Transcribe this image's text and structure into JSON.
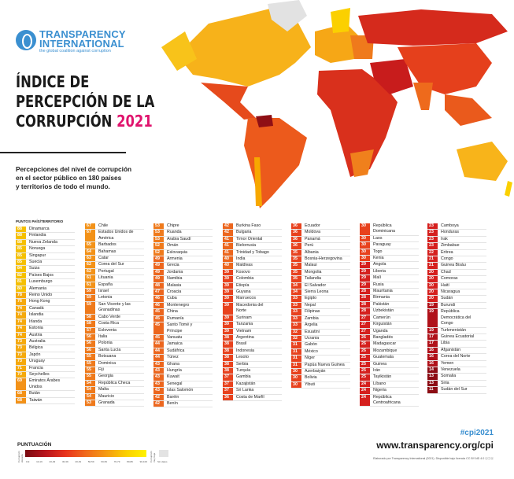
{
  "logo": {
    "line1": "TRANSPARENCY",
    "line2": "INTERNATIONAL",
    "tagline": "the global coalition against corruption"
  },
  "title": {
    "line1": "ÍNDICE DE",
    "line2": "PERCEPCIÓN DE LA",
    "line3": "CORRUPCIÓN",
    "year": "2021"
  },
  "subtitle": {
    "line1": "Percepciones del nivel de corrupción",
    "line2": "en el sector público en 180 países",
    "line3": "y territorios de todo el mundo."
  },
  "table_header": "PUNTOS  PAÍS/TERRITORIO",
  "columns": [
    [
      [
        88,
        "Dinamarca"
      ],
      [
        88,
        "Finlandia"
      ],
      [
        88,
        "Nueva Zelanda"
      ],
      [
        85,
        "Noruega"
      ],
      [
        85,
        "Singapur"
      ],
      [
        85,
        "Suecia"
      ],
      [
        84,
        "Suiza"
      ],
      [
        82,
        "Países Bajos"
      ],
      [
        81,
        "Luxemburgo"
      ],
      [
        80,
        "Alemania"
      ],
      [
        78,
        "Reino Unido"
      ],
      [
        76,
        "Hong Kong"
      ],
      [
        74,
        "Canadá"
      ],
      [
        74,
        "Islandia"
      ],
      [
        74,
        "Irlanda"
      ],
      [
        74,
        "Estonia"
      ],
      [
        74,
        "Austria"
      ],
      [
        73,
        "Australia"
      ],
      [
        73,
        "Bélgica"
      ],
      [
        73,
        "Japón"
      ],
      [
        73,
        "Uruguay"
      ],
      [
        71,
        "Francia"
      ],
      [
        70,
        "Seychelles"
      ],
      [
        69,
        "Emiratos Árabes Unidos"
      ],
      [
        68,
        "Bután"
      ],
      [
        68,
        "Taiwán"
      ]
    ],
    [
      [
        67,
        "Chile"
      ],
      [
        67,
        "Estados Unidos de América"
      ],
      [
        65,
        "Barbados"
      ],
      [
        64,
        "Bahamas"
      ],
      [
        63,
        "Catar"
      ],
      [
        62,
        "Corea del Sur"
      ],
      [
        62,
        "Portugal"
      ],
      [
        61,
        "Lituania"
      ],
      [
        61,
        "España"
      ],
      [
        59,
        "Israel"
      ],
      [
        59,
        "Letonia"
      ],
      [
        59,
        "San Vicente y las Granadinas"
      ],
      [
        58,
        "Cabo Verde"
      ],
      [
        58,
        "Costa Rica"
      ],
      [
        57,
        "Eslovenia"
      ],
      [
        56,
        "Italia"
      ],
      [
        56,
        "Polonia"
      ],
      [
        56,
        "Santa Lucía"
      ],
      [
        55,
        "Botsuana"
      ],
      [
        55,
        "Dominica"
      ],
      [
        55,
        "Fiji"
      ],
      [
        55,
        "Georgia"
      ],
      [
        54,
        "República Checa"
      ],
      [
        54,
        "Malta"
      ],
      [
        54,
        "Mauricio"
      ],
      [
        53,
        "Granada"
      ]
    ],
    [
      [
        53,
        "Chipre"
      ],
      [
        53,
        "Ruanda"
      ],
      [
        53,
        "Arabia Saudí"
      ],
      [
        52,
        "Omán"
      ],
      [
        52,
        "Eslovaquia"
      ],
      [
        49,
        "Armenia"
      ],
      [
        49,
        "Grecia"
      ],
      [
        49,
        "Jordania"
      ],
      [
        49,
        "Namibia"
      ],
      [
        48,
        "Malasia"
      ],
      [
        47,
        "Croacia"
      ],
      [
        46,
        "Cuba"
      ],
      [
        46,
        "Montenegro"
      ],
      [
        45,
        "China"
      ],
      [
        45,
        "Rumanía"
      ],
      [
        45,
        "Santo Tomé y Príncipe"
      ],
      [
        45,
        "Vanuatu"
      ],
      [
        44,
        "Jamaica"
      ],
      [
        44,
        "Sudáfrica"
      ],
      [
        44,
        "Túnez"
      ],
      [
        43,
        "Ghana"
      ],
      [
        43,
        "Hungría"
      ],
      [
        43,
        "Kuwait"
      ],
      [
        43,
        "Senegal"
      ],
      [
        43,
        "Islas Salomón"
      ],
      [
        42,
        "Baréin"
      ],
      [
        42,
        "Benín"
      ]
    ],
    [
      [
        42,
        "Burkina Faso"
      ],
      [
        42,
        "Bulgaria"
      ],
      [
        41,
        "Timor Oriental"
      ],
      [
        41,
        "Bielorrusia"
      ],
      [
        41,
        "Trinidad y Tobago"
      ],
      [
        40,
        "India"
      ],
      [
        40,
        "Maldivas"
      ],
      [
        39,
        "Kosovo"
      ],
      [
        39,
        "Colombia"
      ],
      [
        39,
        "Etiopía"
      ],
      [
        39,
        "Guyana"
      ],
      [
        39,
        "Marruecos"
      ],
      [
        39,
        "Macedonia del Norte"
      ],
      [
        39,
        "Surinam"
      ],
      [
        39,
        "Tanzania"
      ],
      [
        39,
        "Vietnam"
      ],
      [
        38,
        "Argentina"
      ],
      [
        38,
        "Brasil"
      ],
      [
        38,
        "Indonesia"
      ],
      [
        38,
        "Lesoto"
      ],
      [
        38,
        "Serbia"
      ],
      [
        38,
        "Turquía"
      ],
      [
        37,
        "Gambia"
      ],
      [
        37,
        "Kazajistán"
      ],
      [
        37,
        "Sri Lanka"
      ],
      [
        36,
        "Costa de Marfil"
      ]
    ],
    [
      [
        36,
        "Ecuador"
      ],
      [
        36,
        "Moldova"
      ],
      [
        36,
        "Panamá"
      ],
      [
        36,
        "Perú"
      ],
      [
        35,
        "Albania"
      ],
      [
        35,
        "Bosnia-Herzegovina"
      ],
      [
        35,
        "Malaui"
      ],
      [
        35,
        "Mongolia"
      ],
      [
        35,
        "Tailandia"
      ],
      [
        34,
        "El Salvador"
      ],
      [
        34,
        "Sierra Leona"
      ],
      [
        33,
        "Egipto"
      ],
      [
        33,
        "Nepal"
      ],
      [
        33,
        "Filipinas"
      ],
      [
        33,
        "Zambia"
      ],
      [
        33,
        "Argelia"
      ],
      [
        32,
        "Esuatini"
      ],
      [
        32,
        "Ucrania"
      ],
      [
        31,
        "Gabón"
      ],
      [
        31,
        "México"
      ],
      [
        31,
        "Níger"
      ],
      [
        31,
        "Papúa Nueva Guinea"
      ],
      [
        30,
        "Azerbaiyán"
      ],
      [
        30,
        "Bolivia"
      ],
      [
        30,
        "Yibuti"
      ]
    ],
    [
      [
        30,
        "República Dominicana"
      ],
      [
        30,
        "Laos"
      ],
      [
        30,
        "Paraguay"
      ],
      [
        30,
        "Togo"
      ],
      [
        30,
        "Kenia"
      ],
      [
        29,
        "Angola"
      ],
      [
        29,
        "Liberia"
      ],
      [
        29,
        "Malí"
      ],
      [
        29,
        "Rusia"
      ],
      [
        28,
        "Mauritania"
      ],
      [
        28,
        "Birmania"
      ],
      [
        28,
        "Pakistán"
      ],
      [
        28,
        "Uzbekistán"
      ],
      [
        27,
        "Camerún"
      ],
      [
        27,
        "Kirguistán"
      ],
      [
        27,
        "Uganda"
      ],
      [
        26,
        "Bangladés"
      ],
      [
        26,
        "Madagascar"
      ],
      [
        26,
        "Mozambique"
      ],
      [
        25,
        "Guatemala"
      ],
      [
        25,
        "Guinea"
      ],
      [
        25,
        "Irán"
      ],
      [
        25,
        "Tayikistán"
      ],
      [
        24,
        "Líbano"
      ],
      [
        24,
        "Nigeria"
      ],
      [
        24,
        "República Centroafricana"
      ]
    ],
    [
      [
        23,
        "Camboya"
      ],
      [
        23,
        "Honduras"
      ],
      [
        23,
        "Irak"
      ],
      [
        23,
        "Zimbabue"
      ],
      [
        22,
        "Eritrea"
      ],
      [
        21,
        "Congo"
      ],
      [
        21,
        "Guinea Bisáu"
      ],
      [
        20,
        "Chad"
      ],
      [
        20,
        "Comoras"
      ],
      [
        20,
        "Haití"
      ],
      [
        20,
        "Nicaragua"
      ],
      [
        20,
        "Sudán"
      ],
      [
        19,
        "Burundi"
      ],
      [
        19,
        "República Democrática del Congo"
      ],
      [
        19,
        "Turkmenistán"
      ],
      [
        17,
        "Guinea Ecuatorial"
      ],
      [
        17,
        "Libia"
      ],
      [
        16,
        "Afganistán"
      ],
      [
        16,
        "Corea del Norte"
      ],
      [
        16,
        "Yemen"
      ],
      [
        14,
        "Venezuela"
      ],
      [
        13,
        "Somalia"
      ],
      [
        13,
        "Siria"
      ],
      [
        11,
        "Sudán del Sur"
      ]
    ]
  ],
  "legend": {
    "title": "PUNTUACIÓN",
    "low_label": "Corrupción elevada",
    "high_label": "Corrupción muy baja",
    "ticks": [
      "0-9",
      "10-19",
      "20-29",
      "30-39",
      "40-49",
      "50-59",
      "60-69",
      "70-79",
      "80-89",
      "90-100"
    ],
    "no_data": "Sin datos",
    "colors": [
      "#7a0b12",
      "#b8141c",
      "#e8331c",
      "#f06a1c",
      "#f59a14",
      "#fbd000",
      "#fff200"
    ]
  },
  "footer": {
    "hashtag": "#cpi2021",
    "url": "www.transparency.org/cpi",
    "credit": "Elaborado por Transparency International (2021). Disponible bajo licencia CC BY-ND 4.0  ⓒⓘⓔ"
  }
}
